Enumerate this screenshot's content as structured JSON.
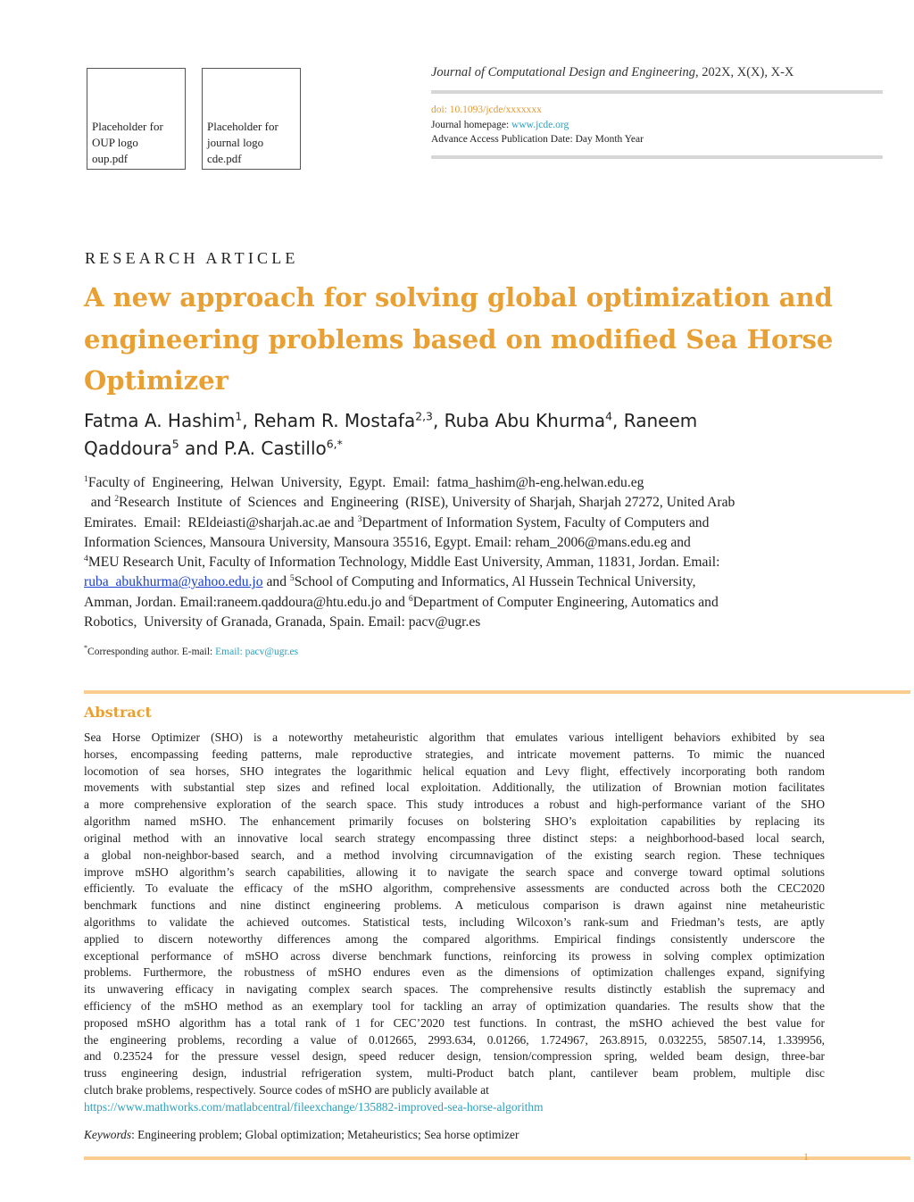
{
  "logos": [
    {
      "lines": [
        "Placeholder for",
        "OUP logo",
        "oup.pdf"
      ]
    },
    {
      "lines": [
        "Placeholder for",
        "journal logo",
        "cde.pdf"
      ]
    }
  ],
  "journal": {
    "name": "Journal of Computational Design and Engineering",
    "issue": ", 202X, X(X), X-X",
    "doi": "doi: 10.1093/jcde/xxxxxxx",
    "homepage_label": "Journal homepage: ",
    "homepage_url": "www.jcde.org",
    "publication_date": "Advance Access Publication Date: Day Month Year"
  },
  "article_type": "RESEARCH ARTICLE",
  "title": "A new approach for solving global optimization and engineering problems based on modified Sea Horse Optimizer",
  "authors": [
    [
      {
        "t": "Fatma A. Hashim"
      },
      {
        "t": "1",
        "sup": true
      },
      {
        "t": ", Reham R. Mostafa"
      },
      {
        "t": "2,3",
        "sup": true
      },
      {
        "t": ", Ruba Abu Khurma"
      },
      {
        "t": "4",
        "sup": true
      },
      {
        "t": ", Raneem"
      }
    ],
    [
      {
        "t": "Qaddoura"
      },
      {
        "t": "5",
        "sup": true
      },
      {
        "t": " and P.A. Castillo"
      },
      {
        "t": "6,*",
        "sup": true
      }
    ]
  ],
  "affiliations": [
    [
      {
        "t": "1",
        "sup": true
      },
      {
        "t": "Faculty of  Engineering,  Helwan  University,  Egypt.  Email:  fatma_hashim@h-eng.helwan.edu.eg"
      }
    ],
    [
      {
        "t": "  and "
      },
      {
        "t": "2",
        "sup": true
      },
      {
        "t": "Research  Institute  of  Sciences  and  Engineering  (RISE), University of Sharjah, Sharjah 27272, United Arab"
      }
    ],
    [
      {
        "t": "Emirates.  Email:  REldeiasti@sharjah.ac.ae and "
      },
      {
        "t": "3",
        "sup": true
      },
      {
        "t": "Department of Information System, Faculty of Computers and"
      }
    ],
    [
      {
        "t": "Information Sciences, Mansoura University, Mansoura 35516, Egypt. Email: reham_2006@mans.edu.eg and"
      }
    ],
    [
      {
        "t": "4",
        "sup": true
      },
      {
        "t": "MEU Research Unit, Faculty of Information Technology, Middle East University, Amman, 11831, Jordan. Email:"
      }
    ],
    [
      {
        "t": "ruba_abukhurma@yahoo.edu.jo",
        "link": true
      },
      {
        "t": " and "
      },
      {
        "t": "5",
        "sup": true
      },
      {
        "t": "School of Computing and Informatics, Al Hussein Technical University,"
      }
    ],
    [
      {
        "t": "Amman, Jordan. Email:raneem.qaddoura@htu.edu.jo and "
      },
      {
        "t": "6",
        "sup": true
      },
      {
        "t": "Department of Computer Engineering, Automatics and"
      }
    ],
    [
      {
        "t": "Robotics,  University of Granada, Granada, Spain. Email: pacv@ugr.es"
      }
    ]
  ],
  "corresponding": {
    "mark": "*",
    "label": "Corresponding author. E-mail: ",
    "email": "Email: pacv@ugr.es"
  },
  "abstract": {
    "heading": "Abstract",
    "lines": [
      "Sea Horse Optimizer (SHO) is a noteworthy metaheuristic algorithm that emulates various intelligent behaviors exhibited by sea",
      "horses, encompassing feeding patterns, male reproductive strategies, and intricate movement patterns. To mimic the nuanced",
      "locomotion of sea horses, SHO integrates the logarithmic helical equation and Levy flight, effectively incorporating both random",
      "movements with substantial step sizes and refined local exploitation. Additionally, the utilization of Brownian motion facilitates",
      "a more comprehensive exploration of the search space. This study introduces a robust and high-performance variant of the SHO",
      "algorithm named mSHO. The enhancement primarily focuses on bolstering SHO’s exploitation capabilities by replacing its",
      "original method with an innovative local search strategy encompassing three distinct steps: a neighborhood-based local search,",
      "a global non-neighbor-based search, and a method involving circumnavigation of the existing search region. These techniques",
      "improve mSHO algorithm’s search capabilities, allowing it to navigate the search space and converge toward optimal solutions",
      "efficiently. To evaluate the efficacy of the mSHO algorithm, comprehensive assessments are conducted across both the CEC2020",
      "benchmark functions and nine distinct engineering problems. A meticulous comparison is drawn against nine metaheuristic",
      "algorithms to validate the achieved outcomes. Statistical tests, including Wilcoxon’s rank-sum and Friedman’s tests, are aptly",
      "applied to discern noteworthy differences among the compared algorithms. Empirical findings consistently underscore the",
      "exceptional performance of mSHO across diverse benchmark functions, reinforcing its prowess in solving complex optimization",
      "problems. Furthermore, the robustness of mSHO endures even as the dimensions of optimization challenges expand, signifying",
      "its unwavering efficacy in navigating complex search spaces. The comprehensive results distinctly establish the supremacy and",
      "efficiency of the mSHO method as an exemplary tool for tackling an array of optimization quandaries. The results show that the",
      "proposed mSHO algorithm has a total rank of 1 for CEC’2020 test functions. In contrast, the mSHO achieved the best value for",
      "the engineering problems, recording a value of 0.012665, 2993.634, 0.01266, 1.724967, 263.8915, 0.032255, 58507.14, 1.339956,",
      "and 0.23524 for the pressure vessel design, speed reducer design, tension/compression spring, welded beam design, three-bar",
      "truss engineering design, industrial refrigeration system, multi-Product batch plant, cantilever beam problem, multiple disc",
      "clutch brake problems, respectively. Source codes of mSHO are publicly available at"
    ],
    "link": "https://www.mathworks.com/matlabcentral/fileexchange/135882-improved-sea-horse-algorithm"
  },
  "keywords": {
    "label": "Keywords",
    "text": ": Engineering problem; Global optimization; Metaheuristics; Sea horse optimizer"
  },
  "page_number": "1",
  "colors": {
    "accent": "#e8a034",
    "link": "#2a9fbf",
    "rule": "#f8cd8f"
  }
}
